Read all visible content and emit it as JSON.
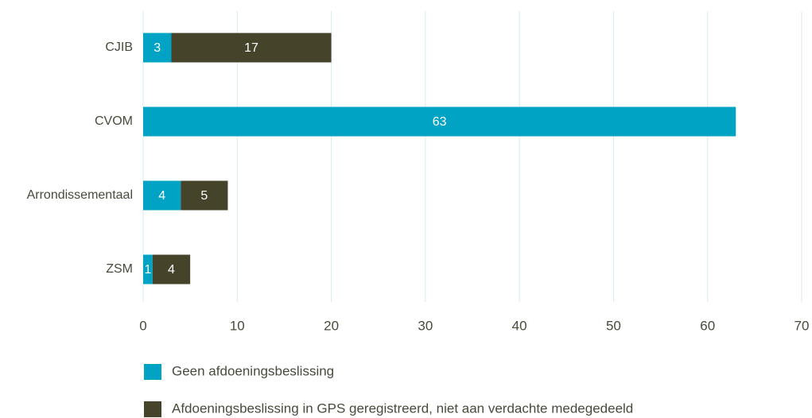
{
  "chart_data": {
    "type": "bar",
    "orientation": "horizontal",
    "stacked": true,
    "categories": [
      "CJIB",
      "CVOM",
      "Arrondissementaal",
      "ZSM"
    ],
    "series": [
      {
        "name": "Geen afdoeningsbeslissing",
        "color": "#00a3c4",
        "values": [
          3,
          63,
          4,
          1
        ]
      },
      {
        "name": "Afdoeningsbeslissing in GPS geregistreerd, niet aan verdachte medegedeeld",
        "color": "#45432a",
        "values": [
          17,
          null,
          5,
          4
        ]
      }
    ],
    "xlim": [
      0,
      70
    ],
    "xticks": [
      0,
      10,
      20,
      30,
      40,
      50,
      60,
      70
    ],
    "grid": true,
    "legend": "bottom"
  }
}
